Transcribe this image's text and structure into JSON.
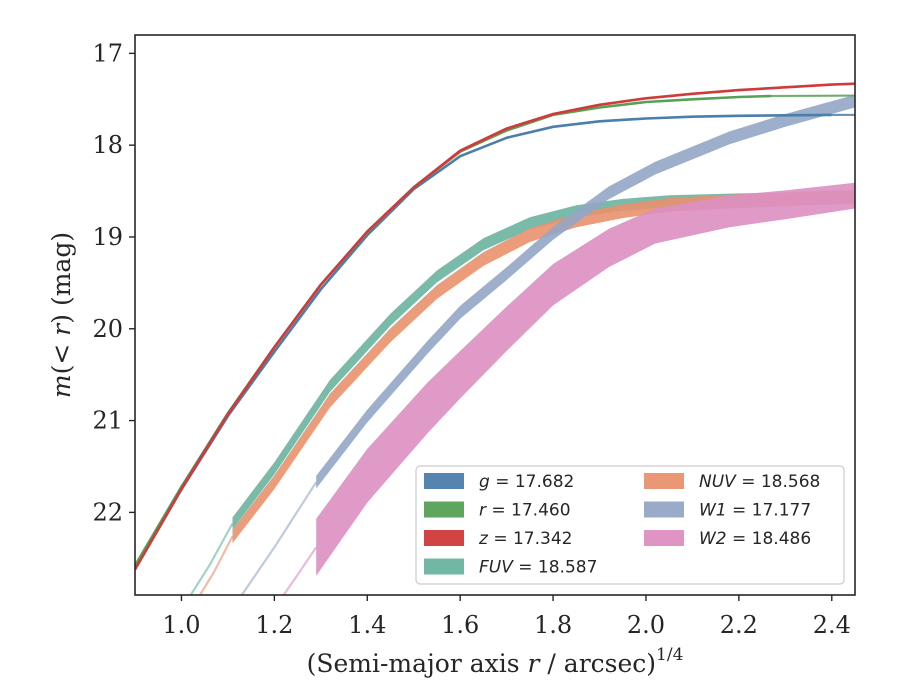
{
  "chart_data": {
    "type": "line",
    "xlabel": "(Semi-major axis r / arcsec)^{1/4}",
    "ylabel": "m(< r) (mag)",
    "xlim": [
      0.9,
      2.45
    ],
    "ylim": [
      22.9,
      16.8
    ],
    "y_inverted": true,
    "xticks": [
      "1.0",
      "1.2",
      "1.4",
      "1.6",
      "1.8",
      "2.0",
      "2.2",
      "2.4"
    ],
    "yticks": [
      "17",
      "18",
      "19",
      "20",
      "21",
      "22"
    ],
    "grid": false,
    "legend_position": "lower-right",
    "legend_columns": 2,
    "series": [
      {
        "name": "g = 17.682",
        "var": "g",
        "val": "17.682",
        "italic": true,
        "color": "#4c7eab",
        "style": "thin",
        "x": [
          0.9,
          1.0,
          1.1,
          1.2,
          1.3,
          1.4,
          1.5,
          1.6,
          1.7,
          1.8,
          1.9,
          2.0,
          2.1,
          2.2,
          2.3,
          2.4
        ],
        "y": [
          22.62,
          21.75,
          20.95,
          20.25,
          19.57,
          18.98,
          18.48,
          18.12,
          17.92,
          17.8,
          17.74,
          17.71,
          17.69,
          17.68,
          17.675,
          17.67
        ],
        "ext_x": [
          2.4,
          2.45
        ],
        "ext_y": [
          17.67,
          17.67
        ]
      },
      {
        "name": "r = 17.460",
        "var": "r",
        "val": "17.460",
        "italic": true,
        "color": "#55a155",
        "style": "thin",
        "x": [
          0.9,
          1.0,
          1.1,
          1.2,
          1.3,
          1.4,
          1.5,
          1.6,
          1.7,
          1.8,
          1.9,
          2.0,
          2.1,
          2.2,
          2.27
        ],
        "y": [
          22.58,
          21.72,
          20.92,
          20.2,
          19.52,
          18.95,
          18.46,
          18.07,
          17.84,
          17.67,
          17.59,
          17.53,
          17.5,
          17.475,
          17.465
        ],
        "ext_x": [
          2.27,
          2.45
        ],
        "ext_y": [
          17.465,
          17.46
        ]
      },
      {
        "name": "z = 17.342",
        "var": "z",
        "val": "17.342",
        "italic": true,
        "color": "#d03a3a",
        "style": "thin",
        "x": [
          0.9,
          1.0,
          1.1,
          1.2,
          1.3,
          1.4,
          1.5,
          1.6,
          1.7,
          1.8,
          1.9,
          2.0,
          2.1,
          2.2,
          2.3,
          2.4,
          2.45
        ],
        "y": [
          22.62,
          21.74,
          20.93,
          20.2,
          19.52,
          18.94,
          18.46,
          18.06,
          17.82,
          17.66,
          17.56,
          17.49,
          17.44,
          17.4,
          17.37,
          17.34,
          17.33
        ],
        "ext_x": [],
        "ext_y": []
      },
      {
        "name": "FUV = 18.587",
        "var": "FUV",
        "val": "18.587",
        "italic": true,
        "color": "#6ab3a0",
        "style": "band",
        "x": [
          1.11,
          1.2,
          1.32,
          1.45,
          1.55,
          1.65,
          1.75,
          1.85,
          1.95,
          2.05,
          2.2,
          2.35,
          2.45
        ],
        "y": [
          22.12,
          21.52,
          20.62,
          19.9,
          19.43,
          19.08,
          18.85,
          18.72,
          18.65,
          18.61,
          18.59,
          18.58,
          18.575
        ],
        "w": 0.13,
        "ext_x": [
          1.02,
          1.06,
          1.11
        ],
        "ext_y": [
          22.9,
          22.58,
          22.12
        ]
      },
      {
        "name": "NUV = 18.568",
        "var": "NUV",
        "val": "18.568",
        "italic": true,
        "color": "#e8916d",
        "style": "band",
        "x": [
          1.11,
          1.2,
          1.32,
          1.45,
          1.55,
          1.65,
          1.75,
          1.85,
          1.95,
          2.05,
          2.2,
          2.35,
          2.45
        ],
        "y": [
          22.26,
          21.67,
          20.78,
          20.07,
          19.6,
          19.24,
          18.98,
          18.82,
          18.72,
          18.65,
          18.61,
          18.58,
          18.565
        ],
        "w": 0.15,
        "ext_x": [
          1.04,
          1.07,
          1.11
        ],
        "ext_y": [
          22.9,
          22.65,
          22.26
        ]
      },
      {
        "name": "W1 = 17.177",
        "var": "W1",
        "val": "17.177",
        "italic": true,
        "color": "#94a6c6",
        "style": "band",
        "x": [
          1.29,
          1.4,
          1.53,
          1.6,
          1.7,
          1.8,
          1.92,
          2.02,
          2.18,
          2.3,
          2.45
        ],
        "y": [
          21.67,
          20.95,
          20.2,
          19.82,
          19.4,
          18.96,
          18.52,
          18.25,
          17.92,
          17.73,
          17.52
        ],
        "w": 0.14,
        "ext_x": [
          1.13,
          1.2,
          1.29
        ],
        "ext_y": [
          22.9,
          22.38,
          21.67
        ]
      },
      {
        "name": "W2 = 18.486",
        "var": "W2",
        "val": "18.486",
        "italic": true,
        "color": "#dc8fc2",
        "style": "band",
        "x": [
          1.29,
          1.4,
          1.53,
          1.6,
          1.7,
          1.8,
          1.92,
          2.02,
          2.18,
          2.3,
          2.45
        ],
        "y": [
          22.38,
          21.6,
          20.86,
          20.5,
          20.0,
          19.52,
          19.12,
          18.88,
          18.72,
          18.65,
          18.55
        ],
        "w": 0.62,
        "w_end": 0.28,
        "ext_x": [
          1.22,
          1.25,
          1.29
        ],
        "ext_y": [
          22.9,
          22.68,
          22.38
        ]
      }
    ]
  }
}
